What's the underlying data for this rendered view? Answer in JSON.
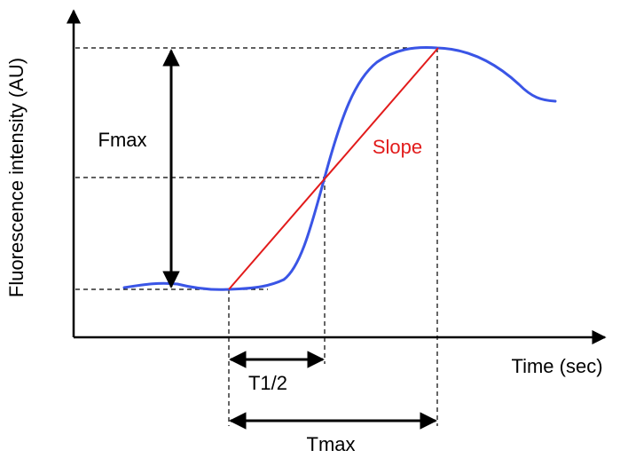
{
  "labels": {
    "y_axis": "Fluorescence intensity (AU)",
    "x_axis": "Time (sec)",
    "fmax": "Fmax",
    "slope": "Slope",
    "t_half": "T1/2",
    "tmax": "Tmax"
  },
  "colors": {
    "curve": "#3a55e6",
    "slope": "#e21b1b",
    "axes": "#000000",
    "guides": "#000000"
  }
}
